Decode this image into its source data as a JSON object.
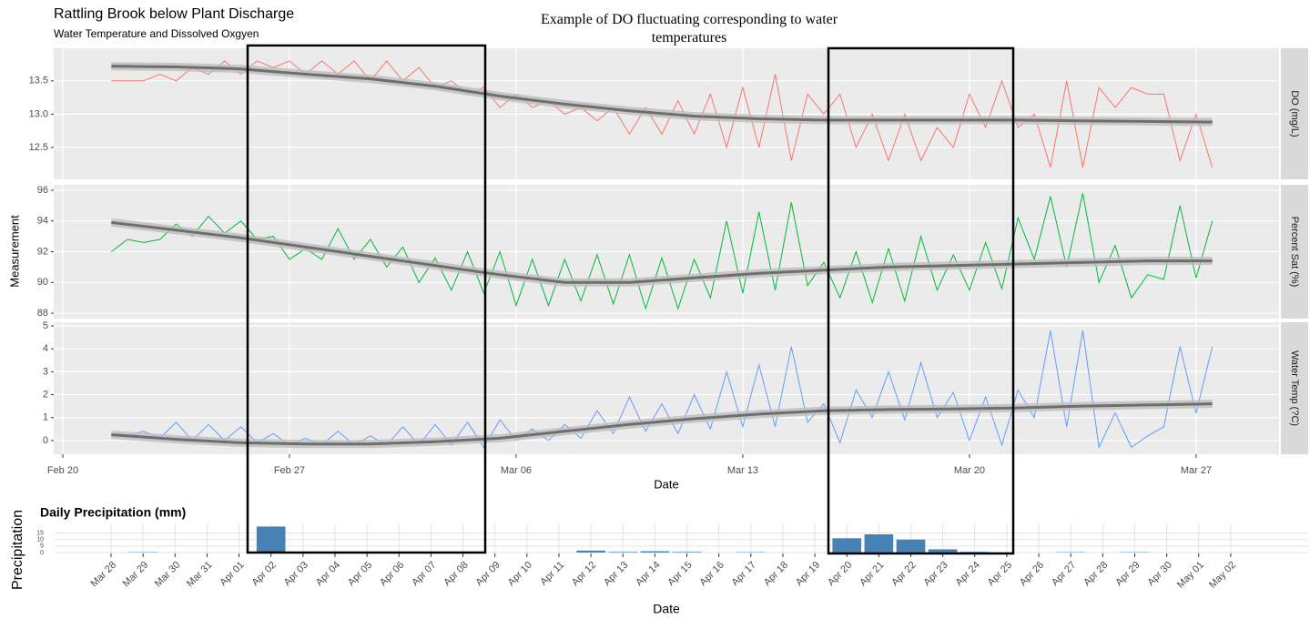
{
  "chart_data": [
    {
      "type": "line",
      "title": "Rattling Brook below Plant Discharge",
      "subtitle": "Water Temperature and Dissolved Oxgyen",
      "annotation": "Example of DO fluctuating corresponding to water temperatures",
      "xlabel": "Date",
      "ylabel": "Measurement",
      "grid": true,
      "xlim": [
        -0.28,
        37.56
      ],
      "xticks": [
        {
          "value": 0,
          "label": "Feb 20"
        },
        {
          "value": 7,
          "label": "Feb 27"
        },
        {
          "value": 14,
          "label": "Mar 06"
        },
        {
          "value": 21,
          "label": "Mar 13"
        },
        {
          "value": 28,
          "label": "Mar 20"
        },
        {
          "value": 35,
          "label": "Mar 27"
        }
      ],
      "x": [
        1.5,
        2,
        2.5,
        3,
        3.5,
        4,
        4.5,
        5,
        5.5,
        6,
        6.5,
        7,
        7.5,
        8,
        8.5,
        9,
        9.5,
        10,
        10.5,
        11,
        11.5,
        12,
        12.5,
        13,
        13.5,
        14,
        14.5,
        15,
        15.5,
        16,
        16.5,
        17,
        17.5,
        18,
        18.5,
        19,
        19.5,
        20,
        20.5,
        21,
        21.5,
        22,
        22.5,
        23,
        23.5,
        24,
        24.5,
        25,
        25.5,
        26,
        26.5,
        27,
        27.5,
        28,
        28.5,
        29,
        29.5,
        30,
        30.5,
        31,
        31.5,
        32,
        32.5,
        33,
        33.5,
        34,
        34.5,
        35,
        35.5
      ],
      "smooth_x": [
        1.5,
        3.5,
        5.5,
        7.5,
        9.5,
        11.5,
        13.5,
        15.5,
        17.5,
        19.5,
        21.5,
        23.5,
        25.5,
        27.5,
        29.5,
        31.5,
        33.5,
        35.5
      ],
      "panels": [
        {
          "strip": "DO (mg/L)",
          "color": "#f8766d",
          "ylim": [
            12.02,
            13.99
          ],
          "yticks": [
            12.5,
            {
              "value": 13,
              "label": "13.0"
            },
            13.5
          ],
          "values": [
            13.5,
            13.5,
            13.5,
            13.6,
            13.5,
            13.7,
            13.6,
            13.8,
            13.6,
            13.8,
            13.7,
            13.8,
            13.6,
            13.8,
            13.6,
            13.8,
            13.5,
            13.8,
            13.5,
            13.7,
            13.4,
            13.5,
            13.3,
            13.4,
            13.1,
            13.3,
            13.1,
            13.2,
            13.0,
            13.1,
            12.9,
            13.1,
            12.7,
            13.1,
            12.7,
            13.2,
            12.7,
            13.3,
            12.5,
            13.4,
            12.5,
            13.6,
            12.3,
            13.3,
            13.0,
            13.3,
            12.5,
            13.0,
            12.3,
            13.0,
            12.3,
            12.8,
            12.5,
            13.3,
            12.8,
            13.5,
            12.8,
            13.0,
            12.2,
            13.5,
            12.2,
            13.4,
            13.1,
            13.4,
            13.3,
            13.3,
            12.3,
            13.0,
            12.2
          ],
          "smooth": [
            13.72,
            13.71,
            13.68,
            13.6,
            13.53,
            13.42,
            13.27,
            13.15,
            13.05,
            12.97,
            12.93,
            12.91,
            12.91,
            12.91,
            12.91,
            12.9,
            12.89,
            12.88
          ]
        },
        {
          "strip": "Percent Sat (%)",
          "color": "#00ba38",
          "ylim": [
            87.65,
            96.35
          ],
          "yticks": [
            88,
            90,
            92,
            94,
            96
          ],
          "values": [
            92.0,
            92.8,
            92.6,
            92.8,
            93.8,
            93.0,
            94.3,
            93.2,
            94.0,
            92.8,
            93.0,
            91.5,
            92.2,
            91.5,
            93.5,
            91.5,
            92.8,
            91.0,
            92.3,
            90.0,
            91.6,
            89.5,
            92.0,
            89.3,
            92.0,
            88.5,
            91.5,
            88.5,
            91.5,
            88.8,
            91.8,
            88.6,
            91.8,
            88.3,
            91.6,
            88.3,
            91.5,
            89.0,
            94.0,
            89.3,
            94.6,
            89.5,
            95.2,
            89.8,
            91.3,
            89.0,
            92.0,
            88.7,
            92.2,
            88.8,
            93.0,
            89.5,
            91.8,
            89.5,
            92.6,
            89.6,
            94.2,
            91.5,
            95.6,
            91.0,
            95.8,
            90.0,
            92.4,
            89.0,
            90.5,
            90.2,
            95.0,
            90.3,
            94.0
          ],
          "smooth": [
            93.9,
            93.4,
            92.9,
            92.3,
            91.7,
            91.1,
            90.5,
            90.0,
            90.0,
            90.3,
            90.6,
            90.8,
            91.0,
            91.1,
            91.2,
            91.3,
            91.4,
            91.4
          ]
        },
        {
          "strip": "Water Temp (?C)",
          "color": "#619cff",
          "ylim": [
            -0.6,
            5.16
          ],
          "yticks": [
            0,
            1,
            2,
            3,
            4,
            5
          ],
          "values": [
            0.3,
            0.2,
            0.4,
            0.1,
            0.8,
            0.0,
            0.7,
            0.0,
            0.6,
            -0.1,
            0.3,
            -0.2,
            0.1,
            -0.2,
            0.4,
            -0.2,
            0.2,
            -0.2,
            0.6,
            -0.2,
            0.7,
            -0.2,
            0.8,
            -0.3,
            0.9,
            0.0,
            0.5,
            0.0,
            0.7,
            0.1,
            1.3,
            0.3,
            1.9,
            0.4,
            1.6,
            0.3,
            2.0,
            0.5,
            3.0,
            0.6,
            3.3,
            0.6,
            4.1,
            0.8,
            1.6,
            -0.1,
            2.2,
            1.0,
            3.0,
            0.9,
            3.4,
            1.0,
            2.1,
            0.0,
            1.9,
            -0.2,
            2.2,
            1.0,
            4.8,
            0.6,
            4.8,
            -0.3,
            1.2,
            -0.3,
            0.2,
            0.6,
            4.1,
            1.2,
            4.1
          ],
          "smooth": [
            0.25,
            0.05,
            -0.1,
            -0.15,
            -0.15,
            -0.05,
            0.1,
            0.4,
            0.7,
            0.95,
            1.15,
            1.3,
            1.35,
            1.38,
            1.42,
            1.5,
            1.55,
            1.6
          ]
        }
      ]
    },
    {
      "type": "bar",
      "title": "Daily Precipitation (mm)",
      "xlabel": "Date",
      "ylabel": "Precipitation",
      "color": "#4682b4",
      "ylim": [
        0,
        21
      ],
      "yticks": [
        0,
        5,
        10,
        15
      ],
      "categories": [
        "Mar 28",
        "Mar 29",
        "Mar 30",
        "Mar 31",
        "Apr 01",
        "Apr 02",
        "Apr 03",
        "Apr 04",
        "Apr 05",
        "Apr 06",
        "Apr 07",
        "Apr 08",
        "Apr 09",
        "Apr 10",
        "Apr 11",
        "Apr 12",
        "Apr 13",
        "Apr 14",
        "Apr 15",
        "Apr 16",
        "Apr 17",
        "Apr 18",
        "Apr 19",
        "Apr 20",
        "Apr 21",
        "Apr 22",
        "Apr 23",
        "Apr 24",
        "Apr 25",
        "Apr 26",
        "Apr 27",
        "Apr 28",
        "Apr 29",
        "Apr 30",
        "May 01",
        "May 02"
      ],
      "values": [
        0,
        0.3,
        0,
        0,
        0,
        20,
        0.5,
        0.5,
        0.5,
        0,
        0.5,
        0.5,
        0,
        0,
        0,
        1.5,
        0.5,
        1,
        0.5,
        0,
        0.3,
        0,
        0,
        11,
        14,
        10,
        2.5,
        0.5,
        0,
        0,
        0.3,
        0,
        0.3,
        0,
        0,
        0
      ]
    }
  ]
}
